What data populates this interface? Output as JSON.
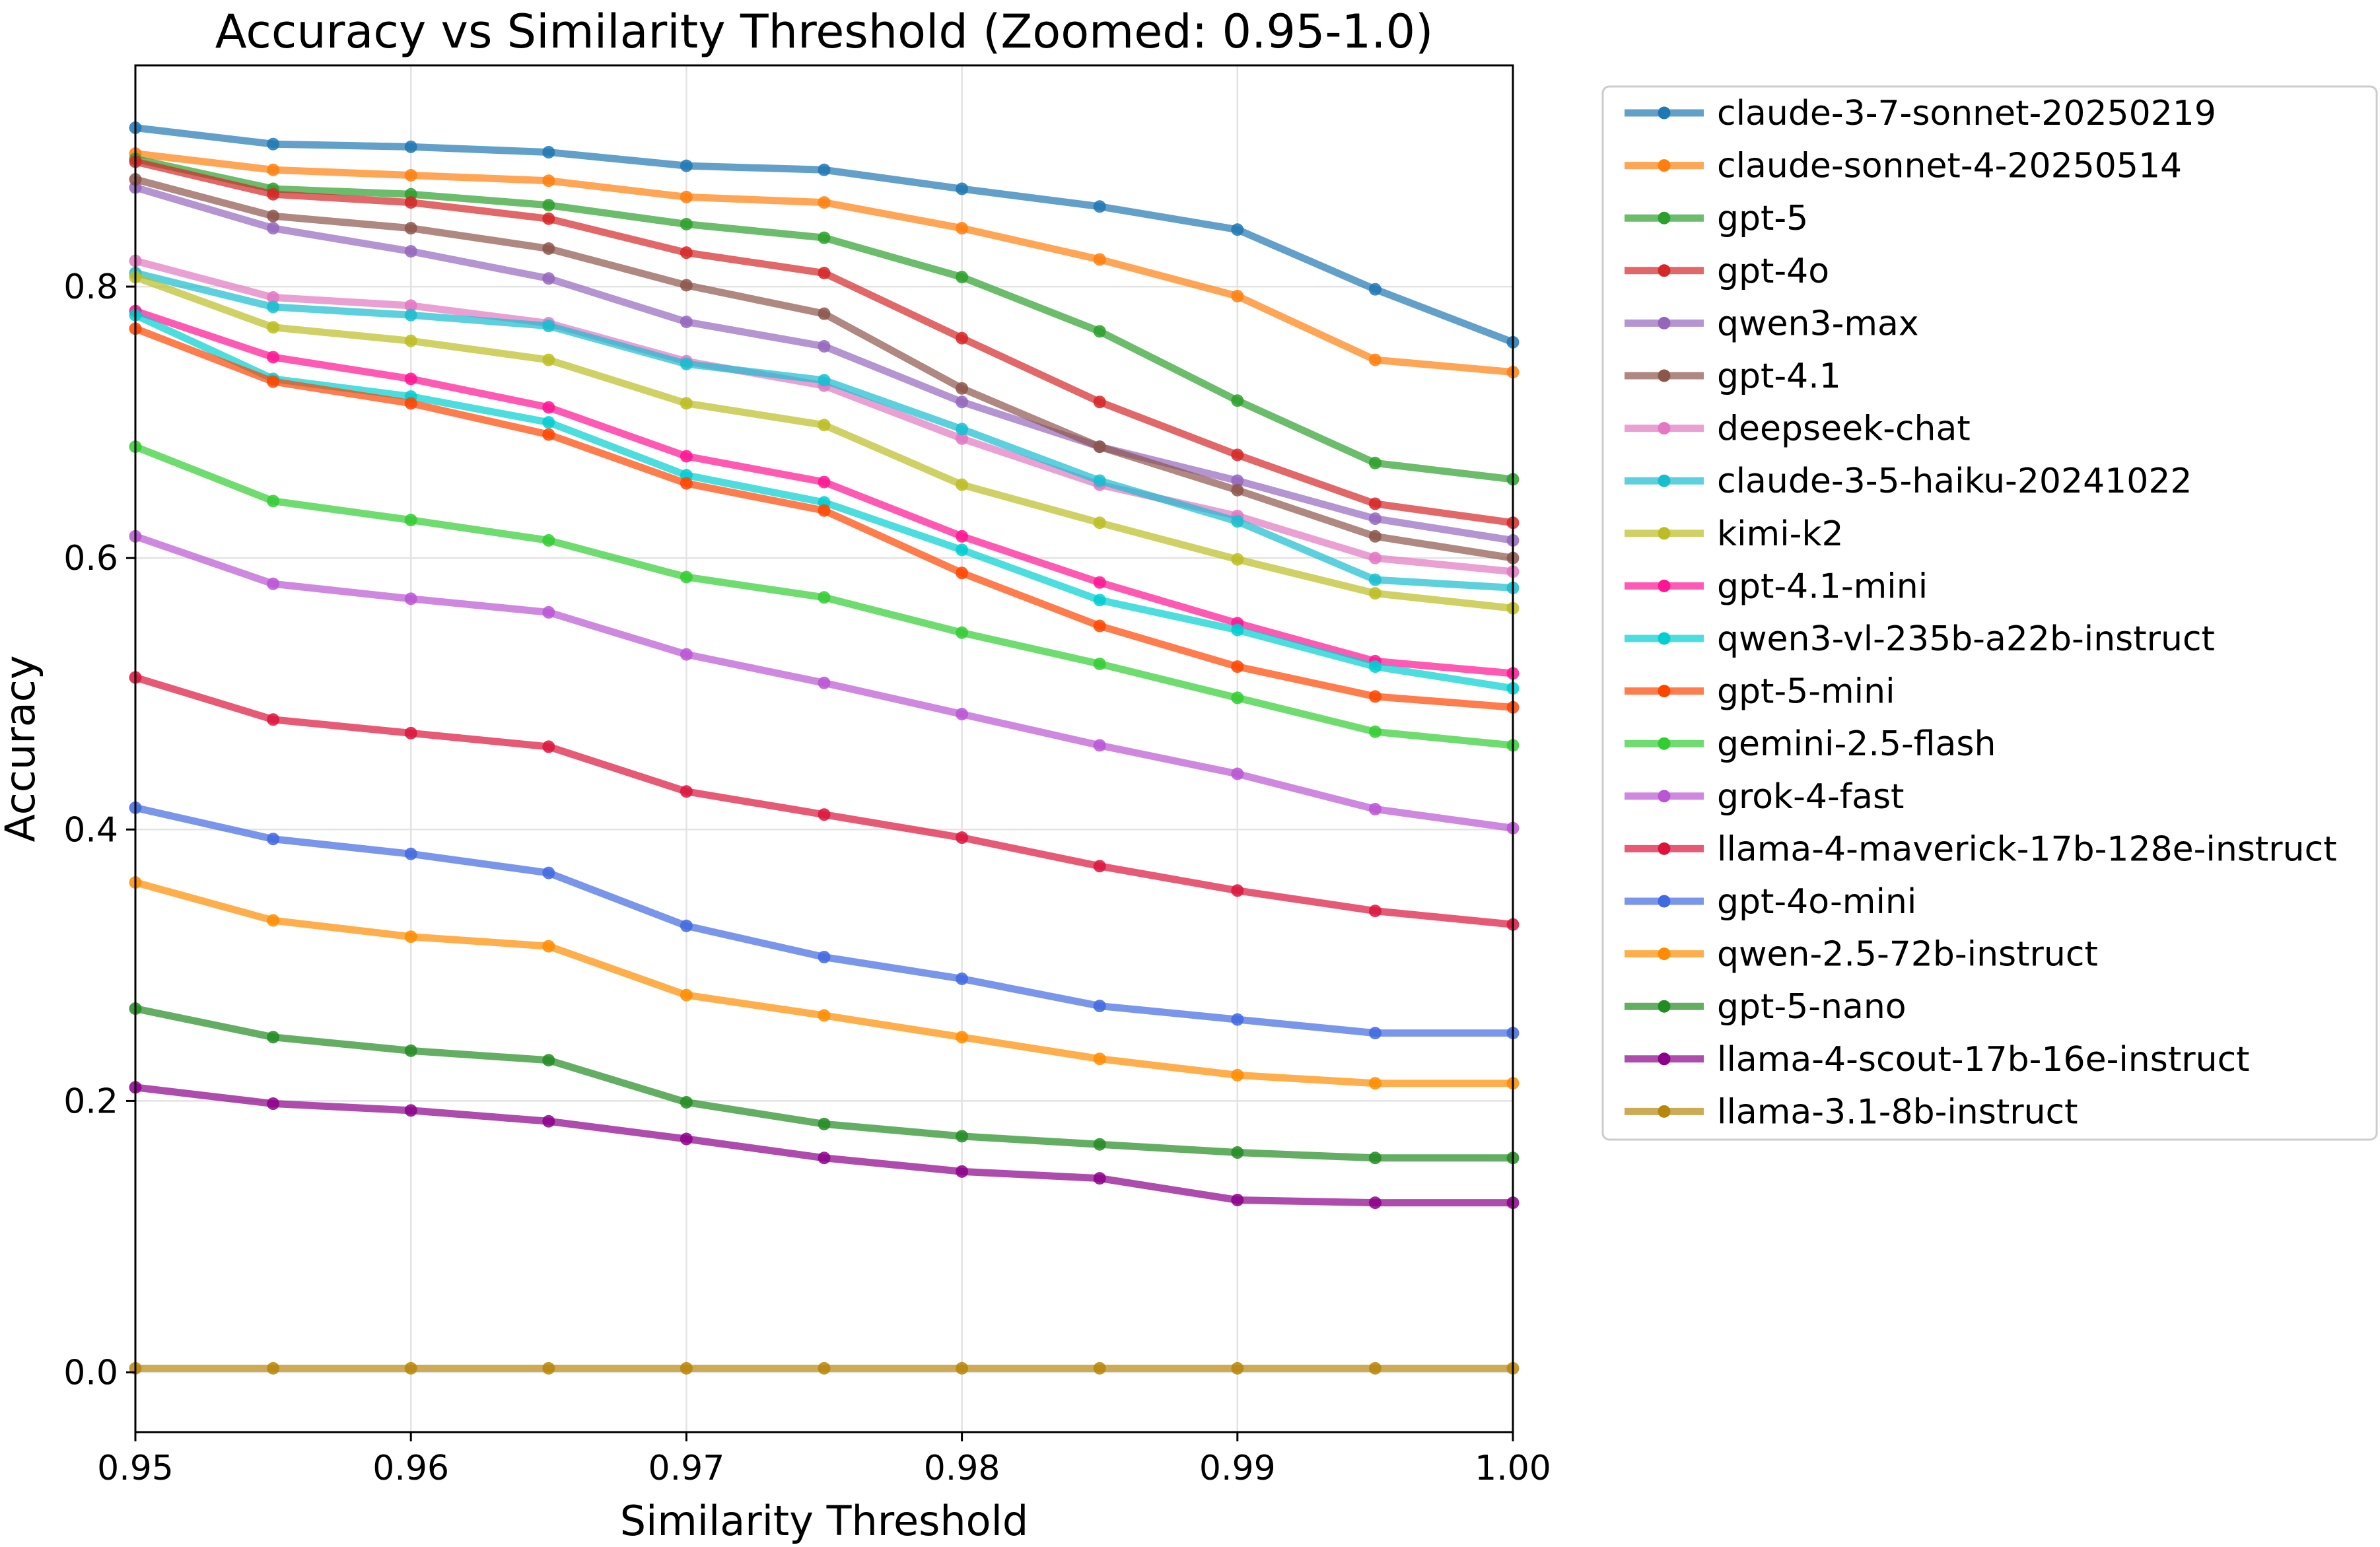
{
  "chart_data": {
    "type": "line",
    "title": "Accuracy vs Similarity Threshold (Zoomed: 0.95-1.0)",
    "xlabel": "Similarity Threshold",
    "ylabel": "Accuracy",
    "xlim": [
      0.95,
      1.0
    ],
    "ylim": [
      -0.044,
      0.963
    ],
    "grid": true,
    "legend_position": "outside-right-top",
    "x_ticks": [
      0.95,
      0.96,
      0.97,
      0.98,
      0.99,
      1.0
    ],
    "x_tick_labels": [
      "0.95",
      "0.96",
      "0.97",
      "0.98",
      "0.99",
      "1.00"
    ],
    "y_ticks": [
      0.0,
      0.2,
      0.4,
      0.6,
      0.8
    ],
    "y_tick_labels": [
      "0.0",
      "0.2",
      "0.4",
      "0.6",
      "0.8"
    ],
    "x": [
      0.95,
      0.955,
      0.96,
      0.965,
      0.97,
      0.975,
      0.98,
      0.985,
      0.99,
      0.995,
      1.0
    ],
    "series": [
      {
        "name": "claude-3-7-sonnet-20250219",
        "color": "#1f77b4",
        "values": [
          0.917,
          0.905,
          0.903,
          0.899,
          0.889,
          0.886,
          0.872,
          0.859,
          0.842,
          0.798,
          0.759
        ]
      },
      {
        "name": "claude-sonnet-4-20250514",
        "color": "#ff7f0e",
        "values": [
          0.898,
          0.886,
          0.882,
          0.878,
          0.866,
          0.862,
          0.843,
          0.82,
          0.793,
          0.746,
          0.737
        ]
      },
      {
        "name": "gpt-5",
        "color": "#2ca02c",
        "values": [
          0.894,
          0.872,
          0.868,
          0.86,
          0.846,
          0.836,
          0.807,
          0.767,
          0.716,
          0.67,
          0.658
        ]
      },
      {
        "name": "gpt-4o",
        "color": "#d62728",
        "values": [
          0.892,
          0.868,
          0.862,
          0.85,
          0.825,
          0.81,
          0.762,
          0.715,
          0.676,
          0.64,
          0.626
        ]
      },
      {
        "name": "qwen3-max",
        "color": "#9467bd",
        "values": [
          0.873,
          0.843,
          0.826,
          0.806,
          0.774,
          0.756,
          0.715,
          0.682,
          0.657,
          0.629,
          0.613
        ]
      },
      {
        "name": "gpt-4.1",
        "color": "#8c564b",
        "values": [
          0.879,
          0.852,
          0.843,
          0.828,
          0.801,
          0.78,
          0.725,
          0.682,
          0.65,
          0.616,
          0.6
        ]
      },
      {
        "name": "deepseek-chat",
        "color": "#e377c2",
        "values": [
          0.819,
          0.792,
          0.786,
          0.773,
          0.745,
          0.727,
          0.688,
          0.654,
          0.631,
          0.6,
          0.59
        ]
      },
      {
        "name": "claude-3-5-haiku-20241022",
        "color": "#17becf",
        "values": [
          0.81,
          0.785,
          0.779,
          0.771,
          0.743,
          0.731,
          0.695,
          0.657,
          0.627,
          0.584,
          0.578
        ]
      },
      {
        "name": "kimi-k2",
        "color": "#bcbd22",
        "values": [
          0.807,
          0.77,
          0.76,
          0.746,
          0.714,
          0.698,
          0.654,
          0.626,
          0.599,
          0.574,
          0.563
        ]
      },
      {
        "name": "gpt-4.1-mini",
        "color": "#ff1493",
        "values": [
          0.782,
          0.748,
          0.732,
          0.711,
          0.675,
          0.656,
          0.616,
          0.582,
          0.552,
          0.524,
          0.515
        ]
      },
      {
        "name": "qwen3-vl-235b-a22b-instruct",
        "color": "#00ced1",
        "values": [
          0.779,
          0.732,
          0.719,
          0.7,
          0.661,
          0.641,
          0.606,
          0.569,
          0.547,
          0.52,
          0.504
        ]
      },
      {
        "name": "gpt-5-mini",
        "color": "#ff4500",
        "values": [
          0.769,
          0.73,
          0.714,
          0.691,
          0.655,
          0.635,
          0.589,
          0.55,
          0.52,
          0.498,
          0.49
        ]
      },
      {
        "name": "gemini-2.5-flash",
        "color": "#32cd32",
        "values": [
          0.682,
          0.642,
          0.628,
          0.613,
          0.586,
          0.571,
          0.545,
          0.522,
          0.497,
          0.472,
          0.462
        ]
      },
      {
        "name": "grok-4-fast",
        "color": "#ba55d3",
        "values": [
          0.616,
          0.581,
          0.57,
          0.56,
          0.529,
          0.508,
          0.485,
          0.462,
          0.441,
          0.415,
          0.401
        ]
      },
      {
        "name": "llama-4-maverick-17b-128e-instruct",
        "color": "#dc143c",
        "values": [
          0.512,
          0.481,
          0.471,
          0.461,
          0.428,
          0.411,
          0.394,
          0.373,
          0.355,
          0.34,
          0.33
        ]
      },
      {
        "name": "gpt-4o-mini",
        "color": "#4169e1",
        "values": [
          0.416,
          0.393,
          0.382,
          0.368,
          0.329,
          0.306,
          0.29,
          0.27,
          0.26,
          0.25,
          0.25
        ]
      },
      {
        "name": "qwen-2.5-72b-instruct",
        "color": "#ff8c00",
        "values": [
          0.361,
          0.333,
          0.321,
          0.314,
          0.278,
          0.263,
          0.247,
          0.231,
          0.219,
          0.213,
          0.213
        ]
      },
      {
        "name": "gpt-5-nano",
        "color": "#228b22",
        "values": [
          0.268,
          0.247,
          0.237,
          0.23,
          0.199,
          0.183,
          0.174,
          0.168,
          0.162,
          0.158,
          0.158
        ]
      },
      {
        "name": "llama-4-scout-17b-16e-instruct",
        "color": "#8b008b",
        "values": [
          0.21,
          0.198,
          0.193,
          0.185,
          0.172,
          0.158,
          0.148,
          0.143,
          0.127,
          0.125,
          0.125
        ]
      },
      {
        "name": "llama-3.1-8b-instruct",
        "color": "#b8860b",
        "values": [
          0.003,
          0.003,
          0.003,
          0.003,
          0.003,
          0.003,
          0.003,
          0.003,
          0.003,
          0.003,
          0.003
        ]
      }
    ]
  }
}
